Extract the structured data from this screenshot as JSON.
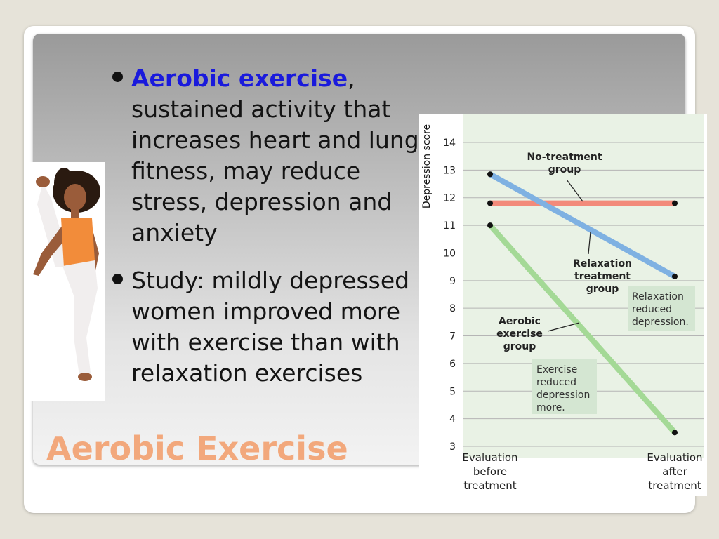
{
  "slide": {
    "title": "Aerobic Exercise",
    "bullets": [
      {
        "term": "Aerobic exercise",
        "rest": ", sustained activity that increases heart and lung fitness, may reduce stress, depression and anxiety"
      },
      {
        "term": "",
        "rest": "Study: mildly depressed women improved more with exercise than with relaxation exercises"
      }
    ]
  },
  "colors": {
    "title": "#f2a87c",
    "term": "#1a1adc",
    "no_treatment": "#f28a7a",
    "relaxation": "#7fb1e2",
    "aerobic": "#a4d996",
    "plot_bg": "#e9f2e5"
  },
  "chart_data": {
    "type": "line",
    "ylabel": "Depression score",
    "xlabel": "",
    "categories": [
      "Evaluation before treatment",
      "Evaluation after treatment"
    ],
    "x_tick_lines": [
      [
        "Evaluation",
        "before",
        "treatment"
      ],
      [
        "Evaluation",
        "after",
        "treatment"
      ]
    ],
    "ylim": [
      3,
      14
    ],
    "yticks": [
      3,
      4,
      5,
      6,
      7,
      8,
      9,
      10,
      11,
      12,
      13,
      14
    ],
    "grid": true,
    "series": [
      {
        "name": "No-treatment group",
        "name_lines": [
          "No-treatment",
          "group"
        ],
        "values": [
          11.8,
          11.8
        ],
        "color": "#f28a7a"
      },
      {
        "name": "Relaxation treatment group",
        "name_lines": [
          "Relaxation",
          "treatment",
          "group"
        ],
        "values": [
          12.85,
          9.15
        ],
        "color": "#7fb1e2"
      },
      {
        "name": "Aerobic exercise group",
        "name_lines": [
          "Aerobic",
          "exercise",
          "group"
        ],
        "values": [
          11.0,
          3.5
        ],
        "color": "#a4d996"
      }
    ],
    "annotations": [
      {
        "lines": [
          "Relaxation",
          "reduced",
          "depression."
        ]
      },
      {
        "lines": [
          "Exercise",
          "reduced",
          "depression",
          "more."
        ]
      }
    ]
  }
}
